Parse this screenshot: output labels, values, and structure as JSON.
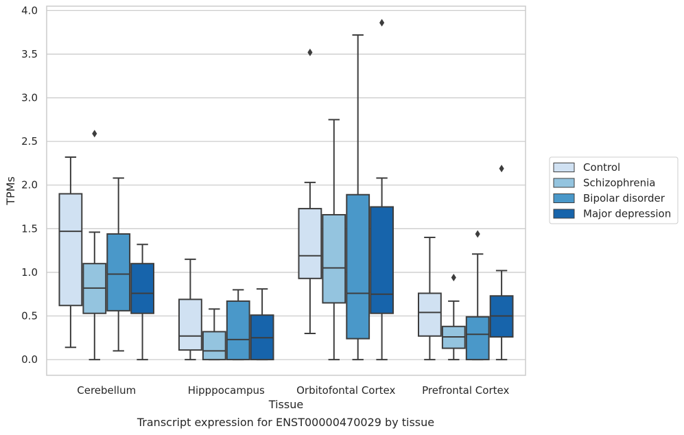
{
  "chart_data": {
    "type": "box",
    "xlabel": "Tissue",
    "ylabel": "TPMs",
    "ylim": [
      -0.18,
      4.05
    ],
    "yticks": [
      "0.0",
      "0.5",
      "1.0",
      "1.5",
      "2.0",
      "2.5",
      "3.0",
      "3.5",
      "4.0"
    ],
    "grid": true,
    "legend_position": "right",
    "categories": [
      "Cerebellum",
      "Hipppocampus",
      "Orbitofontal Cortex",
      "Prefrontal Cortex"
    ],
    "series": [
      {
        "name": "Control",
        "color": "#d0e1f2",
        "boxes": [
          {
            "whisker_low": 0.14,
            "q1": 0.62,
            "median": 1.47,
            "q3": 1.9,
            "whisker_high": 2.32,
            "outliers": []
          },
          {
            "whisker_low": 0.0,
            "q1": 0.11,
            "median": 0.27,
            "q3": 0.69,
            "whisker_high": 1.15,
            "outliers": []
          },
          {
            "whisker_low": 0.3,
            "q1": 0.93,
            "median": 1.19,
            "q3": 1.73,
            "whisker_high": 2.03,
            "outliers": [
              3.52
            ]
          },
          {
            "whisker_low": 0.0,
            "q1": 0.27,
            "median": 0.54,
            "q3": 0.76,
            "whisker_high": 1.4,
            "outliers": []
          }
        ]
      },
      {
        "name": "Schizophrenia",
        "color": "#94c4df",
        "boxes": [
          {
            "whisker_low": 0.0,
            "q1": 0.53,
            "median": 0.82,
            "q3": 1.1,
            "whisker_high": 1.46,
            "outliers": [
              2.59
            ]
          },
          {
            "whisker_low": 0.0,
            "q1": 0.0,
            "median": 0.1,
            "q3": 0.32,
            "whisker_high": 0.58,
            "outliers": []
          },
          {
            "whisker_low": 0.0,
            "q1": 0.65,
            "median": 1.05,
            "q3": 1.66,
            "whisker_high": 2.75,
            "outliers": []
          },
          {
            "whisker_low": 0.0,
            "q1": 0.13,
            "median": 0.26,
            "q3": 0.38,
            "whisker_high": 0.67,
            "outliers": [
              0.94
            ]
          }
        ]
      },
      {
        "name": "Bipolar disorder",
        "color": "#4a98c9",
        "boxes": [
          {
            "whisker_low": 0.1,
            "q1": 0.56,
            "median": 0.98,
            "q3": 1.44,
            "whisker_high": 2.08,
            "outliers": []
          },
          {
            "whisker_low": 0.0,
            "q1": 0.0,
            "median": 0.23,
            "q3": 0.67,
            "whisker_high": 0.8,
            "outliers": []
          },
          {
            "whisker_low": 0.0,
            "q1": 0.24,
            "median": 0.76,
            "q3": 1.89,
            "whisker_high": 3.72,
            "outliers": []
          },
          {
            "whisker_low": 0.0,
            "q1": 0.0,
            "median": 0.29,
            "q3": 0.49,
            "whisker_high": 1.21,
            "outliers": [
              1.44
            ]
          }
        ]
      },
      {
        "name": "Major depression",
        "color": "#1764ab",
        "boxes": [
          {
            "whisker_low": 0.0,
            "q1": 0.53,
            "median": 0.76,
            "q3": 1.1,
            "whisker_high": 1.32,
            "outliers": []
          },
          {
            "whisker_low": 0.0,
            "q1": 0.0,
            "median": 0.25,
            "q3": 0.51,
            "whisker_high": 0.81,
            "outliers": []
          },
          {
            "whisker_low": 0.0,
            "q1": 0.53,
            "median": 0.75,
            "q3": 1.75,
            "whisker_high": 2.08,
            "outliers": [
              3.86
            ]
          },
          {
            "whisker_low": 0.0,
            "q1": 0.26,
            "median": 0.5,
            "q3": 0.73,
            "whisker_high": 1.02,
            "outliers": [
              2.19
            ]
          }
        ]
      }
    ],
    "caption": "Transcript expression for ENST00000470029 by tissue"
  }
}
